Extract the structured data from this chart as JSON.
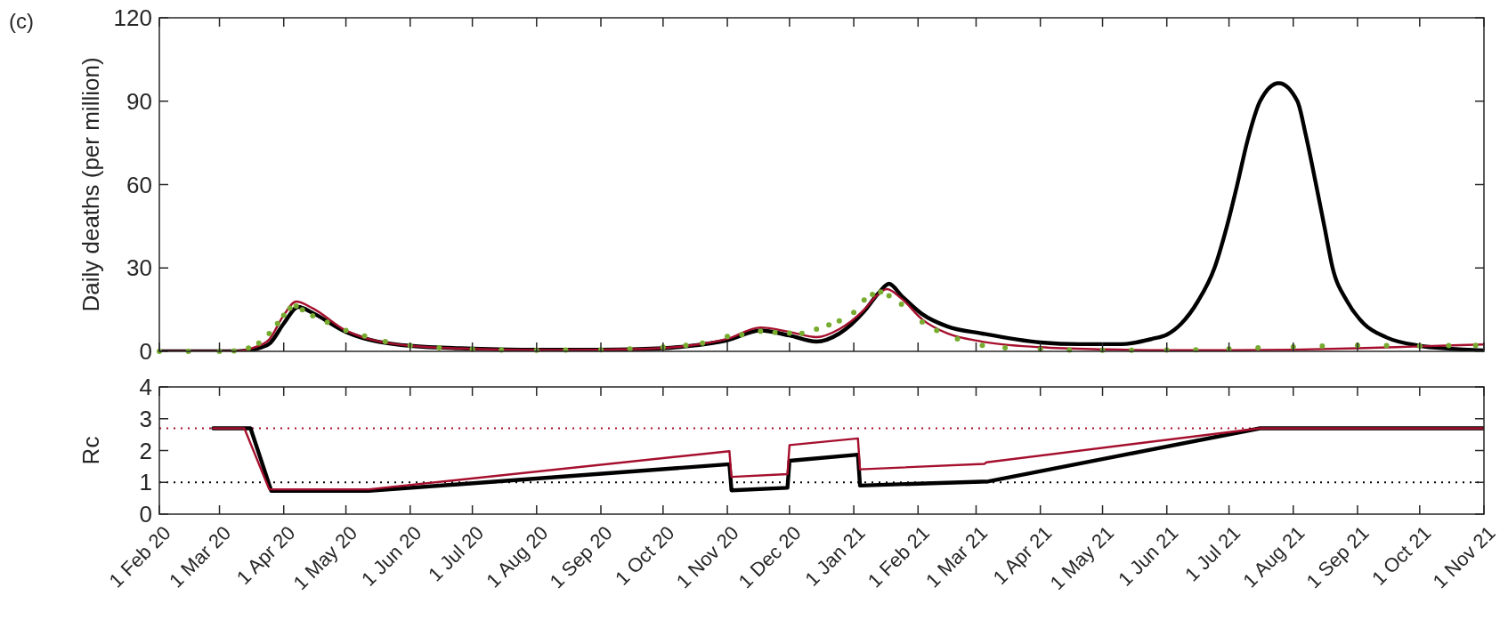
{
  "chart_data": [
    {
      "type": "line",
      "ylabel": "Daily deaths (per million)",
      "annotations": [
        "(c)"
      ],
      "xlim": [
        "2020-02-01",
        "2021-11-01"
      ],
      "xticks": [
        {
          "value": "2020-02-01",
          "label": null
        },
        {
          "value": "2020-03-01",
          "label": null
        },
        {
          "value": "2020-04-01",
          "label": null
        },
        {
          "value": "2020-05-01",
          "label": null
        },
        {
          "value": "2020-06-01",
          "label": null
        },
        {
          "value": "2020-07-01",
          "label": null
        },
        {
          "value": "2020-08-01",
          "label": null
        },
        {
          "value": "2020-09-01",
          "label": null
        },
        {
          "value": "2020-10-01",
          "label": null
        },
        {
          "value": "2020-11-01",
          "label": null
        },
        {
          "value": "2020-12-01",
          "label": null
        },
        {
          "value": "2021-01-01",
          "label": null
        },
        {
          "value": "2021-02-01",
          "label": null
        },
        {
          "value": "2021-03-01",
          "label": null
        },
        {
          "value": "2021-04-01",
          "label": null
        },
        {
          "value": "2021-05-01",
          "label": null
        },
        {
          "value": "2021-06-01",
          "label": null
        },
        {
          "value": "2021-07-01",
          "label": null
        },
        {
          "value": "2021-08-01",
          "label": null
        },
        {
          "value": "2021-09-01",
          "label": null
        },
        {
          "value": "2021-10-01",
          "label": null
        },
        {
          "value": "2021-11-01",
          "label": null
        }
      ],
      "ylim": [
        0,
        120
      ],
      "yticks": [
        0,
        30,
        60,
        90,
        120
      ],
      "tick_labels": "y",
      "series": [
        {
          "color": "#000000",
          "x": [
            "2020-02-01",
            "2020-03-10",
            "2020-03-18",
            "2020-03-25",
            "2020-04-01",
            "2020-04-08",
            "2020-04-15",
            "2020-05-01",
            "2020-06-01",
            "2020-07-01",
            "2020-08-01",
            "2020-09-01",
            "2020-10-01",
            "2020-10-12",
            "2020-11-01",
            "2020-11-17",
            "2020-12-01",
            "2020-12-14",
            "2020-12-25",
            "2021-01-06",
            "2021-01-13",
            "2021-01-18",
            "2021-01-24",
            "2021-02-03",
            "2021-02-15",
            "2021-03-04",
            "2021-04-01",
            "2021-04-20",
            "2021-05-10",
            "2021-05-25",
            "2021-06-01",
            "2021-06-08",
            "2021-06-16",
            "2021-06-24",
            "2021-06-30",
            "2021-07-05",
            "2021-07-10",
            "2021-07-16",
            "2021-07-25",
            "2021-08-03",
            "2021-08-07",
            "2021-08-12",
            "2021-08-16",
            "2021-08-20",
            "2021-08-27",
            "2021-09-04",
            "2021-09-15",
            "2021-10-01",
            "2021-10-15",
            "2021-11-01"
          ],
          "values": [
            0,
            0,
            0.8,
            2.7,
            10,
            16,
            13.8,
            7,
            2,
            1,
            0.6,
            0.6,
            1.1,
            1.8,
            4,
            7.5,
            5.7,
            3.5,
            6.4,
            14.4,
            21,
            24.3,
            20,
            13.4,
            9,
            6.4,
            3.2,
            2.6,
            2.6,
            4.5,
            6,
            10,
            18,
            30,
            45,
            60,
            76,
            90,
            96.5,
            90,
            78,
            60,
            45,
            30,
            18,
            10,
            5,
            2,
            1,
            0.3
          ]
        },
        {
          "color": "#a50f2d",
          "x": [
            "2020-02-01",
            "2020-03-08",
            "2020-03-18",
            "2020-03-25",
            "2020-04-01",
            "2020-04-07",
            "2020-04-15",
            "2020-05-01",
            "2020-06-01",
            "2020-07-01",
            "2020-08-01",
            "2020-09-01",
            "2020-10-01",
            "2020-10-12",
            "2020-11-01",
            "2020-11-17",
            "2020-12-01",
            "2020-12-14",
            "2020-12-25",
            "2021-01-06",
            "2021-01-12",
            "2021-01-17",
            "2021-01-24",
            "2021-02-03",
            "2021-02-15",
            "2021-03-04",
            "2021-04-01",
            "2021-05-01",
            "2021-06-01",
            "2021-07-01",
            "2021-08-01",
            "2021-09-01",
            "2021-10-01",
            "2021-11-01"
          ],
          "values": [
            0,
            0,
            1.5,
            4.3,
            13,
            17.9,
            15.5,
            7.5,
            2,
            0.9,
            0.5,
            0.6,
            1.2,
            1.9,
            4.5,
            8.6,
            7,
            5.1,
            8,
            15,
            20,
            22.4,
            19,
            11.5,
            6.5,
            3.5,
            1.5,
            0.7,
            0.4,
            0.4,
            0.6,
            1.1,
            1.8,
            2.5
          ]
        },
        {
          "type": "scatter",
          "marker": "circle",
          "color": "#77ac30",
          "x": [
            "2020-02-01",
            "2020-02-15",
            "2020-03-01",
            "2020-03-08",
            "2020-03-15",
            "2020-03-20",
            "2020-03-25",
            "2020-03-29",
            "2020-04-01",
            "2020-04-04",
            "2020-04-07",
            "2020-04-10",
            "2020-04-15",
            "2020-04-22",
            "2020-05-01",
            "2020-05-10",
            "2020-05-20",
            "2020-06-01",
            "2020-06-15",
            "2020-07-01",
            "2020-07-15",
            "2020-08-01",
            "2020-08-15",
            "2020-09-01",
            "2020-09-15",
            "2020-10-01",
            "2020-10-12",
            "2020-10-20",
            "2020-11-01",
            "2020-11-08",
            "2020-11-17",
            "2020-11-24",
            "2020-12-01",
            "2020-12-07",
            "2020-12-14",
            "2020-12-20",
            "2020-12-25",
            "2021-01-01",
            "2021-01-06",
            "2021-01-10",
            "2021-01-14",
            "2021-01-18",
            "2021-01-24",
            "2021-02-03",
            "2021-02-10",
            "2021-02-20",
            "2021-03-04",
            "2021-03-15",
            "2021-04-01",
            "2021-04-15",
            "2021-05-01",
            "2021-05-15",
            "2021-06-01",
            "2021-06-15",
            "2021-07-01",
            "2021-07-15",
            "2021-08-01",
            "2021-08-15",
            "2021-09-01",
            "2021-09-15",
            "2021-10-01",
            "2021-10-15",
            "2021-10-28"
          ],
          "values": [
            0,
            0,
            0,
            0.2,
            1.2,
            3,
            6.4,
            10,
            13,
            15.5,
            16.3,
            15,
            12.8,
            10.5,
            7.5,
            5.5,
            3.5,
            2.1,
            1.3,
            0.8,
            0.5,
            0.4,
            0.5,
            0.6,
            0.9,
            1.5,
            2.2,
            3,
            5.4,
            6,
            7.2,
            6.8,
            6.6,
            6.5,
            8,
            9.5,
            11,
            14,
            18.5,
            20.5,
            21.4,
            20,
            17,
            10.6,
            7.5,
            4.5,
            2.2,
            1.3,
            0.8,
            0.5,
            0.4,
            0.4,
            0.5,
            0.6,
            0.9,
            1.3,
            1.6,
            1.9,
            2.2,
            2.1,
            1.9,
            2.1,
            2.2
          ]
        }
      ]
    },
    {
      "type": "line",
      "ylabel": "Rc",
      "xlim": [
        "2020-02-01",
        "2021-11-01"
      ],
      "xticks": [
        {
          "value": "2020-02-01",
          "label": "1 Feb 20"
        },
        {
          "value": "2020-03-01",
          "label": "1 Mar 20"
        },
        {
          "value": "2020-04-01",
          "label": "1 Apr 20"
        },
        {
          "value": "2020-05-01",
          "label": "1 May 20"
        },
        {
          "value": "2020-06-01",
          "label": "1 Jun 20"
        },
        {
          "value": "2020-07-01",
          "label": "1 Jul 20"
        },
        {
          "value": "2020-08-01",
          "label": "1 Aug 20"
        },
        {
          "value": "2020-09-01",
          "label": "1 Sep 20"
        },
        {
          "value": "2020-10-01",
          "label": "1 Oct 20"
        },
        {
          "value": "2020-11-01",
          "label": "1 Nov 20"
        },
        {
          "value": "2020-12-01",
          "label": "1 Dec 20"
        },
        {
          "value": "2021-01-01",
          "label": "1 Jan 21"
        },
        {
          "value": "2021-02-01",
          "label": "1 Feb 21"
        },
        {
          "value": "2021-03-01",
          "label": "1 Mar 21"
        },
        {
          "value": "2021-04-01",
          "label": "1 Apr 21"
        },
        {
          "value": "2021-05-01",
          "label": "1 May 21"
        },
        {
          "value": "2021-06-01",
          "label": "1 Jun 21"
        },
        {
          "value": "2021-07-01",
          "label": "1 Jul 21"
        },
        {
          "value": "2021-08-01",
          "label": "1 Aug 21"
        },
        {
          "value": "2021-09-01",
          "label": "1 Sep 21"
        },
        {
          "value": "2021-10-01",
          "label": "1 Oct 21"
        },
        {
          "value": "2021-11-01",
          "label": "1 Nov 21"
        }
      ],
      "ylim": [
        0,
        4
      ],
      "yticks": [
        0,
        1,
        2,
        3,
        4
      ],
      "ref_lines": [
        {
          "axis": "y",
          "value": 1,
          "color": "#000000",
          "line_style": "dotted"
        },
        {
          "axis": "y",
          "value": 2.7,
          "color": "#a50f2d",
          "line_style": "dotted"
        }
      ],
      "series": [
        {
          "color": "#000000",
          "x": [
            "2020-02-27",
            "2020-03-16",
            "2020-03-26",
            "2020-05-12",
            "2020-11-02",
            "2020-11-03",
            "2020-11-30",
            "2020-12-01",
            "2021-01-03",
            "2021-01-04",
            "2021-03-07",
            "2021-07-16",
            "2021-11-01"
          ],
          "values": [
            2.7,
            2.7,
            0.73,
            0.73,
            1.57,
            0.75,
            0.83,
            1.68,
            1.87,
            0.9,
            1.03,
            2.7,
            2.7
          ]
        },
        {
          "color": "#a50f2d",
          "x": [
            "2020-02-27",
            "2020-03-13",
            "2020-03-25",
            "2020-05-12",
            "2020-11-02",
            "2020-11-03",
            "2020-11-30",
            "2020-12-01",
            "2021-01-03",
            "2021-01-04",
            "2021-03-05",
            "2021-03-06",
            "2021-07-16",
            "2021-11-01"
          ],
          "values": [
            2.7,
            2.7,
            0.78,
            0.78,
            1.98,
            1.17,
            1.26,
            2.17,
            2.38,
            1.41,
            1.58,
            1.63,
            2.7,
            2.7
          ]
        }
      ]
    }
  ]
}
